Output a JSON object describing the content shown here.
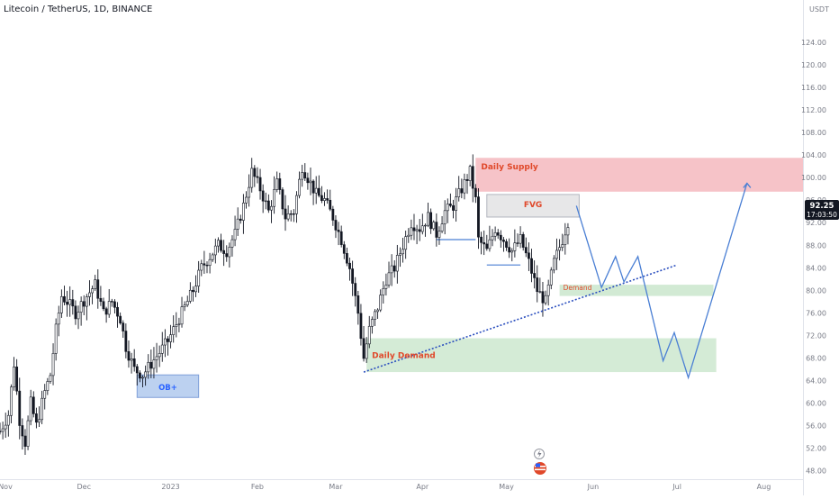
{
  "header": {
    "title": "Litecoin / TetherUS, 1D, BINANCE"
  },
  "price_scale": {
    "currency": "USDT",
    "current_price": "92.25",
    "countdown": "17:03:50"
  },
  "chart_data": {
    "type": "candlestick",
    "title": "Litecoin / TetherUS, 1D, BINANCE",
    "y_unit": "USDT",
    "ylim": [
      46.5,
      131.5
    ],
    "y_ticks": [
      48,
      52,
      56,
      60,
      64,
      68,
      72,
      76,
      80,
      84,
      88,
      92,
      96,
      100,
      104,
      108,
      112,
      116,
      120,
      124
    ],
    "x_range": [
      "2022-11-01",
      "2023-08-15"
    ],
    "x_ticks": [
      {
        "label": "Nov",
        "date": "2022-11-01"
      },
      {
        "label": "Dec",
        "date": "2022-12-01"
      },
      {
        "label": "2023",
        "date": "2023-01-01"
      },
      {
        "label": "Feb",
        "date": "2023-02-01"
      },
      {
        "label": "Mar",
        "date": "2023-03-01"
      },
      {
        "label": "Apr",
        "date": "2023-04-01"
      },
      {
        "label": "May",
        "date": "2023-05-01"
      },
      {
        "label": "Jun",
        "date": "2023-06-01"
      },
      {
        "label": "Jul",
        "date": "2023-07-01"
      },
      {
        "label": "Aug",
        "date": "2023-08-01"
      }
    ],
    "grid": false,
    "colors": {
      "up": "#131722",
      "down": "#131722",
      "projection": "#4a7fd4",
      "trendline": "#2b4fbf",
      "supply": "#f4b9be",
      "demand": "#cde8cf",
      "ob": "#bcd1f0",
      "fvg": "#e4e4e6",
      "label_red": "#e0482a",
      "ob_text": "#2962ff"
    },
    "price_path": [
      {
        "date": "2022-11-01",
        "value": 55
      },
      {
        "date": "2022-11-04",
        "value": 58
      },
      {
        "date": "2022-11-06",
        "value": 67
      },
      {
        "date": "2022-11-08",
        "value": 57
      },
      {
        "date": "2022-11-10",
        "value": 53
      },
      {
        "date": "2022-11-12",
        "value": 60
      },
      {
        "date": "2022-11-14",
        "value": 56
      },
      {
        "date": "2022-11-17",
        "value": 62
      },
      {
        "date": "2022-11-19",
        "value": 65
      },
      {
        "date": "2022-11-21",
        "value": 73
      },
      {
        "date": "2022-11-23",
        "value": 79
      },
      {
        "date": "2022-11-25",
        "value": 78
      },
      {
        "date": "2022-11-28",
        "value": 76
      },
      {
        "date": "2022-12-02",
        "value": 79
      },
      {
        "date": "2022-12-05",
        "value": 81
      },
      {
        "date": "2022-12-08",
        "value": 76
      },
      {
        "date": "2022-12-11",
        "value": 78
      },
      {
        "date": "2022-12-14",
        "value": 75
      },
      {
        "date": "2022-12-16",
        "value": 70
      },
      {
        "date": "2022-12-19",
        "value": 66
      },
      {
        "date": "2022-12-22",
        "value": 65
      },
      {
        "date": "2022-12-25",
        "value": 67
      },
      {
        "date": "2022-12-28",
        "value": 69
      },
      {
        "date": "2022-12-31",
        "value": 71
      },
      {
        "date": "2023-01-03",
        "value": 74
      },
      {
        "date": "2023-01-06",
        "value": 77
      },
      {
        "date": "2023-01-09",
        "value": 80
      },
      {
        "date": "2023-01-12",
        "value": 84
      },
      {
        "date": "2023-01-15",
        "value": 86
      },
      {
        "date": "2023-01-18",
        "value": 88
      },
      {
        "date": "2023-01-21",
        "value": 87
      },
      {
        "date": "2023-01-24",
        "value": 90
      },
      {
        "date": "2023-01-27",
        "value": 95
      },
      {
        "date": "2023-01-30",
        "value": 101
      },
      {
        "date": "2023-02-02",
        "value": 98
      },
      {
        "date": "2023-02-05",
        "value": 94
      },
      {
        "date": "2023-02-08",
        "value": 99
      },
      {
        "date": "2023-02-11",
        "value": 93
      },
      {
        "date": "2023-02-14",
        "value": 94
      },
      {
        "date": "2023-02-17",
        "value": 102
      },
      {
        "date": "2023-02-19",
        "value": 100
      },
      {
        "date": "2023-02-22",
        "value": 97
      },
      {
        "date": "2023-02-25",
        "value": 96
      },
      {
        "date": "2023-02-28",
        "value": 93
      },
      {
        "date": "2023-03-03",
        "value": 89
      },
      {
        "date": "2023-03-06",
        "value": 84
      },
      {
        "date": "2023-03-09",
        "value": 76
      },
      {
        "date": "2023-03-11",
        "value": 68
      },
      {
        "date": "2023-03-13",
        "value": 73
      },
      {
        "date": "2023-03-16",
        "value": 77
      },
      {
        "date": "2023-03-19",
        "value": 82
      },
      {
        "date": "2023-03-22",
        "value": 84
      },
      {
        "date": "2023-03-25",
        "value": 88
      },
      {
        "date": "2023-03-28",
        "value": 92
      },
      {
        "date": "2023-03-31",
        "value": 91
      },
      {
        "date": "2023-04-03",
        "value": 93
      },
      {
        "date": "2023-04-06",
        "value": 90
      },
      {
        "date": "2023-04-09",
        "value": 94
      },
      {
        "date": "2023-04-12",
        "value": 95
      },
      {
        "date": "2023-04-15",
        "value": 98
      },
      {
        "date": "2023-04-18",
        "value": 101
      },
      {
        "date": "2023-04-20",
        "value": 96
      },
      {
        "date": "2023-04-21",
        "value": 89
      },
      {
        "date": "2023-04-24",
        "value": 87
      },
      {
        "date": "2023-04-27",
        "value": 91
      },
      {
        "date": "2023-04-30",
        "value": 89
      },
      {
        "date": "2023-05-03",
        "value": 87
      },
      {
        "date": "2023-05-06",
        "value": 89
      },
      {
        "date": "2023-05-09",
        "value": 85
      },
      {
        "date": "2023-05-12",
        "value": 80
      },
      {
        "date": "2023-05-15",
        "value": 78
      },
      {
        "date": "2023-05-18",
        "value": 85
      },
      {
        "date": "2023-05-21",
        "value": 89
      },
      {
        "date": "2023-05-23",
        "value": 92.25
      }
    ],
    "zones": [
      {
        "label": "Daily Supply",
        "x0": "2023-04-20",
        "x1": "2023-08-15",
        "y0": 97.5,
        "y1": 103.5
      },
      {
        "label": "FVG",
        "x0": "2023-04-24",
        "x1": "2023-05-27",
        "y0": 93,
        "y1": 97
      },
      {
        "label": "Demand",
        "x0": "2023-05-20",
        "x1": "2023-07-14",
        "y0": 79,
        "y1": 81
      },
      {
        "label": "Daily Demand",
        "x0": "2023-03-12",
        "x1": "2023-07-15",
        "y0": 65.5,
        "y1": 71.5
      },
      {
        "label": "OB+",
        "x0": "2022-12-20",
        "x1": "2023-01-11",
        "y0": 61,
        "y1": 65
      }
    ],
    "trendline": [
      {
        "date": "2023-03-11",
        "value": 65.5
      },
      {
        "date": "2023-07-01",
        "value": 84.5
      }
    ],
    "levels": [
      {
        "x0": "2023-04-06",
        "x1": "2023-04-20",
        "value": 89
      },
      {
        "x0": "2023-04-24",
        "x1": "2023-05-06",
        "value": 84.5
      }
    ],
    "projection": [
      {
        "date": "2023-05-26",
        "value": 95
      },
      {
        "date": "2023-06-04",
        "value": 80.5
      },
      {
        "date": "2023-06-09",
        "value": 86
      },
      {
        "date": "2023-06-12",
        "value": 81.5
      },
      {
        "date": "2023-06-17",
        "value": 86
      },
      {
        "date": "2023-06-26",
        "value": 67.5
      },
      {
        "date": "2023-06-30",
        "value": 72.5
      },
      {
        "date": "2023-07-05",
        "value": 64.5
      },
      {
        "date": "2023-07-26",
        "value": 99
      }
    ]
  }
}
